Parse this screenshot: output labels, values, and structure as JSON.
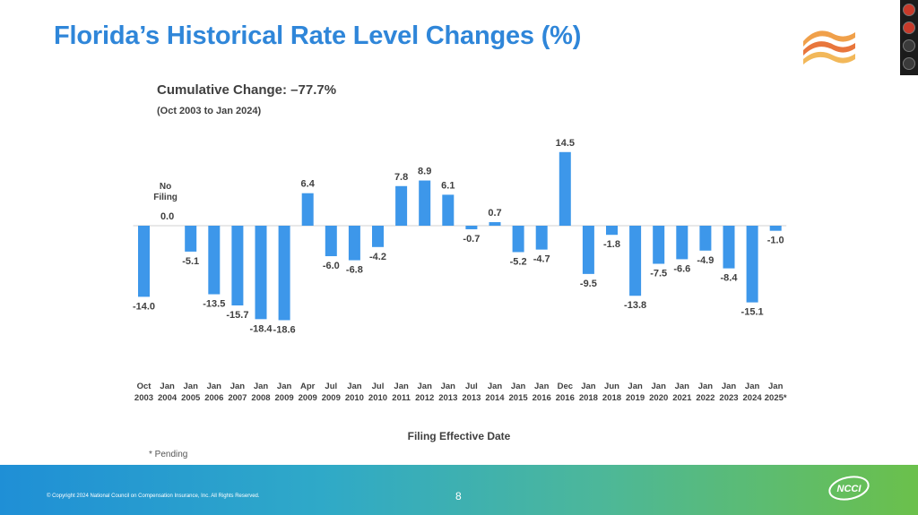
{
  "slide": {
    "title": "Florida’s Historical Rate Level Changes (%)",
    "page_number": "8",
    "copyright": "© Copyright 2024 National Council on Compensation Insurance, Inc. All Rights Reserved.",
    "logo_text": "NCCI"
  },
  "chart_data": {
    "type": "bar",
    "subtitle": "Cumulative Change: –77.7%",
    "subtitle2": "(Oct 2003 to Jan 2024)",
    "xlabel": "Filing Effective Date",
    "ylabel": "",
    "footnote": "* Pending",
    "bar_color": "#3d97ea",
    "categories": [
      [
        "Oct",
        "2003"
      ],
      [
        "Jan",
        "2004"
      ],
      [
        "Jan",
        "2005"
      ],
      [
        "Jan",
        "2006"
      ],
      [
        "Jan",
        "2007"
      ],
      [
        "Jan",
        "2008"
      ],
      [
        "Jan",
        "2009"
      ],
      [
        "Apr",
        "2009"
      ],
      [
        "Jul",
        "2009"
      ],
      [
        "Jan",
        "2010"
      ],
      [
        "Jul",
        "2010"
      ],
      [
        "Jan",
        "2011"
      ],
      [
        "Jan",
        "2012"
      ],
      [
        "Jan",
        "2013"
      ],
      [
        "Jul",
        "2013"
      ],
      [
        "Jan",
        "2014"
      ],
      [
        "Jan",
        "2015"
      ],
      [
        "Jan",
        "2016"
      ],
      [
        "Dec",
        "2016"
      ],
      [
        "Jan",
        "2018"
      ],
      [
        "Jun",
        "2018"
      ],
      [
        "Jan",
        "2019"
      ],
      [
        "Jan",
        "2020"
      ],
      [
        "Jan",
        "2021"
      ],
      [
        "Jan",
        "2022"
      ],
      [
        "Jan",
        "2023"
      ],
      [
        "Jan",
        "2024"
      ],
      [
        "Jan",
        "2025*"
      ]
    ],
    "values": [
      -14.0,
      0.0,
      -5.1,
      -13.5,
      -15.7,
      -18.4,
      -18.6,
      6.4,
      -6.0,
      -6.8,
      -4.2,
      7.8,
      8.9,
      6.1,
      -0.7,
      0.7,
      -5.2,
      -4.7,
      14.5,
      -9.5,
      -1.8,
      -13.8,
      -7.5,
      -6.6,
      -4.9,
      -8.4,
      -15.1,
      -1.0
    ],
    "labels": [
      "-14.0",
      "0.0",
      "-5.1",
      "-13.5",
      "-15.7",
      "-18.4",
      "-18.6",
      "6.4",
      "-6.0",
      "-6.8",
      "-4.2",
      "7.8",
      "8.9",
      "6.1",
      "-0.7",
      "0.7",
      "-5.2",
      "-4.7",
      "14.5",
      "-9.5",
      "-1.8",
      "-13.8",
      "-7.5",
      "-6.6",
      "-4.9",
      "-8.4",
      "-15.1",
      "-1.0"
    ],
    "annotation": [
      "No",
      "Filing"
    ],
    "annotation_index": 1
  }
}
